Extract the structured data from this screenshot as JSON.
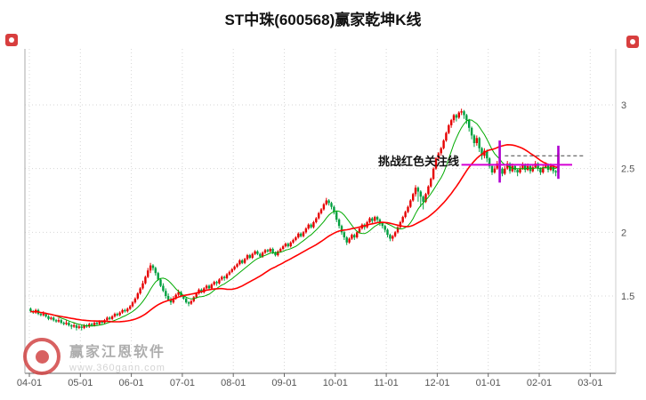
{
  "header": {
    "title": "ST中珠(600568)赢家乾坤K线"
  },
  "watermark": {
    "brand": "赢家江恩软件",
    "url": "www.360gann.com"
  },
  "chart_data": {
    "type": "candlestick",
    "title": "ST中珠(600568)赢家乾坤K线",
    "x_labels": [
      "04-01",
      "05-01",
      "06-01",
      "07-01",
      "08-01",
      "09-01",
      "10-01",
      "11-01",
      "12-01",
      "01-01",
      "02-01",
      "03-01"
    ],
    "y_ticks": [
      3,
      2.5,
      2,
      1.5
    ],
    "y_tick_labels": [
      "3",
      "2.5",
      "2",
      "1.5"
    ],
    "ylim": [
      0.9,
      3.45
    ],
    "grid": true,
    "candles_per_month": 20,
    "up_color": "#e60000",
    "down_color": "#00a040",
    "signal_color": "#b000d0",
    "moving_averages": [
      {
        "name": "MA10",
        "period": 10,
        "color": "#00aa00",
        "width": 1
      },
      {
        "name": "MA30",
        "period": 30,
        "color": "#ff0000",
        "width": 1.6
      }
    ],
    "alert_line": {
      "label": "挑战红色关注线",
      "value": 2.53,
      "color": "#d400d4",
      "start_index": 169,
      "end_x": 643
    },
    "dashed_line": {
      "value": 2.6,
      "start_index": 186,
      "end_x": 658
    },
    "signal_bars": [
      {
        "index": 184,
        "low": 2.39,
        "high": 2.72
      },
      {
        "index": 207,
        "low": 2.42,
        "high": 2.68
      }
    ],
    "candles": [
      [
        1.4,
        1.41,
        1.37,
        1.38
      ],
      [
        1.38,
        1.39,
        1.36,
        1.37
      ],
      [
        1.37,
        1.4,
        1.36,
        1.39
      ],
      [
        1.39,
        1.4,
        1.35,
        1.36
      ],
      [
        1.36,
        1.37,
        1.34,
        1.35
      ],
      [
        1.35,
        1.38,
        1.34,
        1.36
      ],
      [
        1.36,
        1.37,
        1.33,
        1.34
      ],
      [
        1.34,
        1.35,
        1.31,
        1.32
      ],
      [
        1.32,
        1.34,
        1.31,
        1.33
      ],
      [
        1.33,
        1.34,
        1.3,
        1.31
      ],
      [
        1.31,
        1.32,
        1.29,
        1.3
      ],
      [
        1.3,
        1.33,
        1.29,
        1.31
      ],
      [
        1.31,
        1.32,
        1.28,
        1.29
      ],
      [
        1.29,
        1.3,
        1.27,
        1.28
      ],
      [
        1.28,
        1.31,
        1.27,
        1.29
      ],
      [
        1.29,
        1.3,
        1.26,
        1.27
      ],
      [
        1.27,
        1.28,
        1.24,
        1.26
      ],
      [
        1.26,
        1.29,
        1.25,
        1.27
      ],
      [
        1.27,
        1.28,
        1.23,
        1.25
      ],
      [
        1.25,
        1.28,
        1.24,
        1.26
      ],
      [
        1.26,
        1.27,
        1.23,
        1.25
      ],
      [
        1.25,
        1.28,
        1.24,
        1.27
      ],
      [
        1.27,
        1.28,
        1.25,
        1.26
      ],
      [
        1.26,
        1.29,
        1.25,
        1.28
      ],
      [
        1.28,
        1.29,
        1.26,
        1.27
      ],
      [
        1.27,
        1.3,
        1.26,
        1.29
      ],
      [
        1.29,
        1.3,
        1.27,
        1.28
      ],
      [
        1.28,
        1.31,
        1.27,
        1.3
      ],
      [
        1.3,
        1.31,
        1.28,
        1.29
      ],
      [
        1.29,
        1.32,
        1.28,
        1.31
      ],
      [
        1.31,
        1.34,
        1.3,
        1.33
      ],
      [
        1.33,
        1.34,
        1.31,
        1.32
      ],
      [
        1.32,
        1.35,
        1.31,
        1.34
      ],
      [
        1.34,
        1.37,
        1.33,
        1.36
      ],
      [
        1.36,
        1.37,
        1.34,
        1.35
      ],
      [
        1.35,
        1.38,
        1.34,
        1.37
      ],
      [
        1.37,
        1.4,
        1.36,
        1.39
      ],
      [
        1.39,
        1.4,
        1.37,
        1.38
      ],
      [
        1.38,
        1.41,
        1.37,
        1.4
      ],
      [
        1.4,
        1.43,
        1.39,
        1.42
      ],
      [
        1.42,
        1.46,
        1.41,
        1.45
      ],
      [
        1.45,
        1.49,
        1.44,
        1.48
      ],
      [
        1.48,
        1.53,
        1.47,
        1.52
      ],
      [
        1.52,
        1.57,
        1.51,
        1.56
      ],
      [
        1.56,
        1.62,
        1.55,
        1.6
      ],
      [
        1.6,
        1.66,
        1.59,
        1.65
      ],
      [
        1.65,
        1.72,
        1.64,
        1.7
      ],
      [
        1.7,
        1.76,
        1.68,
        1.74
      ],
      [
        1.74,
        1.75,
        1.7,
        1.72
      ],
      [
        1.72,
        1.73,
        1.66,
        1.68
      ],
      [
        1.68,
        1.69,
        1.62,
        1.63
      ],
      [
        1.63,
        1.64,
        1.57,
        1.58
      ],
      [
        1.58,
        1.6,
        1.53,
        1.54
      ],
      [
        1.54,
        1.56,
        1.48,
        1.5
      ],
      [
        1.5,
        1.52,
        1.46,
        1.47
      ],
      [
        1.47,
        1.49,
        1.43,
        1.45
      ],
      [
        1.45,
        1.5,
        1.44,
        1.48
      ],
      [
        1.48,
        1.52,
        1.47,
        1.51
      ],
      [
        1.51,
        1.55,
        1.5,
        1.53
      ],
      [
        1.53,
        1.54,
        1.49,
        1.5
      ],
      [
        1.5,
        1.51,
        1.47,
        1.48
      ],
      [
        1.48,
        1.49,
        1.44,
        1.45
      ],
      [
        1.45,
        1.46,
        1.42,
        1.44
      ],
      [
        1.44,
        1.47,
        1.43,
        1.46
      ],
      [
        1.46,
        1.5,
        1.45,
        1.49
      ],
      [
        1.49,
        1.53,
        1.48,
        1.52
      ],
      [
        1.52,
        1.56,
        1.51,
        1.55
      ],
      [
        1.55,
        1.56,
        1.52,
        1.53
      ],
      [
        1.53,
        1.57,
        1.52,
        1.56
      ],
      [
        1.56,
        1.59,
        1.55,
        1.58
      ],
      [
        1.58,
        1.59,
        1.55,
        1.56
      ],
      [
        1.56,
        1.6,
        1.55,
        1.59
      ],
      [
        1.59,
        1.62,
        1.58,
        1.61
      ],
      [
        1.61,
        1.62,
        1.58,
        1.6
      ],
      [
        1.6,
        1.64,
        1.59,
        1.63
      ],
      [
        1.63,
        1.66,
        1.62,
        1.65
      ],
      [
        1.65,
        1.66,
        1.62,
        1.64
      ],
      [
        1.64,
        1.68,
        1.63,
        1.67
      ],
      [
        1.67,
        1.7,
        1.66,
        1.69
      ],
      [
        1.69,
        1.72,
        1.68,
        1.71
      ],
      [
        1.71,
        1.74,
        1.7,
        1.73
      ],
      [
        1.73,
        1.76,
        1.72,
        1.75
      ],
      [
        1.75,
        1.79,
        1.74,
        1.78
      ],
      [
        1.78,
        1.79,
        1.75,
        1.76
      ],
      [
        1.76,
        1.8,
        1.75,
        1.79
      ],
      [
        1.79,
        1.83,
        1.78,
        1.82
      ],
      [
        1.82,
        1.83,
        1.79,
        1.8
      ],
      [
        1.8,
        1.84,
        1.79,
        1.83
      ],
      [
        1.83,
        1.86,
        1.82,
        1.85
      ],
      [
        1.85,
        1.86,
        1.82,
        1.83
      ],
      [
        1.83,
        1.84,
        1.8,
        1.81
      ],
      [
        1.81,
        1.85,
        1.8,
        1.84
      ],
      [
        1.84,
        1.87,
        1.83,
        1.86
      ],
      [
        1.86,
        1.87,
        1.84,
        1.85
      ],
      [
        1.85,
        1.88,
        1.84,
        1.87
      ],
      [
        1.87,
        1.88,
        1.83,
        1.84
      ],
      [
        1.84,
        1.85,
        1.81,
        1.82
      ],
      [
        1.82,
        1.86,
        1.81,
        1.85
      ],
      [
        1.85,
        1.88,
        1.84,
        1.87
      ],
      [
        1.87,
        1.9,
        1.86,
        1.89
      ],
      [
        1.89,
        1.92,
        1.88,
        1.91
      ],
      [
        1.91,
        1.92,
        1.88,
        1.89
      ],
      [
        1.89,
        1.93,
        1.88,
        1.92
      ],
      [
        1.92,
        1.95,
        1.91,
        1.94
      ],
      [
        1.94,
        1.97,
        1.93,
        1.96
      ],
      [
        1.96,
        2.0,
        1.95,
        1.99
      ],
      [
        1.99,
        2.0,
        1.96,
        1.97
      ],
      [
        1.97,
        2.01,
        1.96,
        2.0
      ],
      [
        2.0,
        2.04,
        1.99,
        2.03
      ],
      [
        2.03,
        2.07,
        2.02,
        2.06
      ],
      [
        2.06,
        2.07,
        2.03,
        2.04
      ],
      [
        2.04,
        2.09,
        2.03,
        2.08
      ],
      [
        2.08,
        2.12,
        2.07,
        2.11
      ],
      [
        2.11,
        2.16,
        2.1,
        2.15
      ],
      [
        2.15,
        2.19,
        2.14,
        2.18
      ],
      [
        2.18,
        2.23,
        2.17,
        2.22
      ],
      [
        2.22,
        2.27,
        2.21,
        2.25
      ],
      [
        2.25,
        2.26,
        2.21,
        2.23
      ],
      [
        2.23,
        2.24,
        2.18,
        2.2
      ],
      [
        2.2,
        2.21,
        2.14,
        2.16
      ],
      [
        2.16,
        2.17,
        2.08,
        2.1
      ],
      [
        2.1,
        2.11,
        2.03,
        2.05
      ],
      [
        2.05,
        2.06,
        1.98,
        2.0
      ],
      [
        2.0,
        2.01,
        1.94,
        1.96
      ],
      [
        1.96,
        1.97,
        1.9,
        1.92
      ],
      [
        1.92,
        1.96,
        1.91,
        1.95
      ],
      [
        1.95,
        1.99,
        1.94,
        1.98
      ],
      [
        1.98,
        1.99,
        1.94,
        1.96
      ],
      [
        1.96,
        2.01,
        1.95,
        2.0
      ],
      [
        2.0,
        2.04,
        1.99,
        2.03
      ],
      [
        2.03,
        2.07,
        2.02,
        2.06
      ],
      [
        2.06,
        2.07,
        2.02,
        2.04
      ],
      [
        2.04,
        2.09,
        2.03,
        2.08
      ],
      [
        2.08,
        2.12,
        2.07,
        2.11
      ],
      [
        2.11,
        2.12,
        2.07,
        2.09
      ],
      [
        2.09,
        2.13,
        2.08,
        2.12
      ],
      [
        2.12,
        2.13,
        2.08,
        2.1
      ],
      [
        2.1,
        2.11,
        2.05,
        2.07
      ],
      [
        2.07,
        2.08,
        2.03,
        2.05
      ],
      [
        2.05,
        2.06,
        2.0,
        2.02
      ],
      [
        2.02,
        2.03,
        1.96,
        1.98
      ],
      [
        1.98,
        1.99,
        1.93,
        1.95
      ],
      [
        1.95,
        1.98,
        1.93,
        1.97
      ],
      [
        1.97,
        2.01,
        1.96,
        2.0
      ],
      [
        2.0,
        2.05,
        1.99,
        2.04
      ],
      [
        2.04,
        2.09,
        2.03,
        2.08
      ],
      [
        2.08,
        2.13,
        2.07,
        2.12
      ],
      [
        2.12,
        2.17,
        2.11,
        2.16
      ],
      [
        2.16,
        2.21,
        2.15,
        2.2
      ],
      [
        2.2,
        2.26,
        2.19,
        2.25
      ],
      [
        2.25,
        2.31,
        2.24,
        2.3
      ],
      [
        2.3,
        2.37,
        2.28,
        2.35
      ],
      [
        2.35,
        2.36,
        2.24,
        2.32
      ],
      [
        2.32,
        2.33,
        2.2,
        2.28
      ],
      [
        2.28,
        2.29,
        2.18,
        2.24
      ],
      [
        2.24,
        2.31,
        2.23,
        2.3
      ],
      [
        2.3,
        2.37,
        2.29,
        2.36
      ],
      [
        2.36,
        2.43,
        2.35,
        2.42
      ],
      [
        2.42,
        2.51,
        2.41,
        2.5
      ],
      [
        2.5,
        2.59,
        2.49,
        2.58
      ],
      [
        2.58,
        2.63,
        2.56,
        2.62
      ],
      [
        2.62,
        2.67,
        2.6,
        2.66
      ],
      [
        2.66,
        2.73,
        2.65,
        2.72
      ],
      [
        2.72,
        2.79,
        2.71,
        2.78
      ],
      [
        2.78,
        2.85,
        2.77,
        2.84
      ],
      [
        2.84,
        2.89,
        2.82,
        2.88
      ],
      [
        2.88,
        2.93,
        2.86,
        2.92
      ],
      [
        2.92,
        2.93,
        2.87,
        2.9
      ],
      [
        2.9,
        2.95,
        2.89,
        2.94
      ],
      [
        2.94,
        2.97,
        2.92,
        2.95
      ],
      [
        2.95,
        2.96,
        2.89,
        2.92
      ],
      [
        2.92,
        2.93,
        2.85,
        2.88
      ],
      [
        2.88,
        2.89,
        2.79,
        2.82
      ],
      [
        2.82,
        2.83,
        2.73,
        2.76
      ],
      [
        2.76,
        2.77,
        2.67,
        2.7
      ],
      [
        2.7,
        2.76,
        2.68,
        2.74
      ],
      [
        2.74,
        2.75,
        2.63,
        2.66
      ],
      [
        2.66,
        2.67,
        2.57,
        2.6
      ],
      [
        2.6,
        2.66,
        2.58,
        2.64
      ],
      [
        2.64,
        2.65,
        2.55,
        2.58
      ],
      [
        2.58,
        2.59,
        2.5,
        2.52
      ],
      [
        2.52,
        2.53,
        2.45,
        2.47
      ],
      [
        2.47,
        2.52,
        2.46,
        2.5
      ],
      [
        2.5,
        2.56,
        2.49,
        2.54
      ],
      [
        2.54,
        2.55,
        2.48,
        2.5
      ],
      [
        2.5,
        2.51,
        2.44,
        2.46
      ],
      [
        2.46,
        2.52,
        2.45,
        2.5
      ],
      [
        2.5,
        2.56,
        2.49,
        2.54
      ],
      [
        2.54,
        2.55,
        2.46,
        2.48
      ],
      [
        2.48,
        2.54,
        2.47,
        2.52
      ],
      [
        2.52,
        2.53,
        2.47,
        2.49
      ],
      [
        2.49,
        2.5,
        2.44,
        2.47
      ],
      [
        2.47,
        2.52,
        2.46,
        2.5
      ],
      [
        2.5,
        2.55,
        2.49,
        2.53
      ],
      [
        2.53,
        2.54,
        2.47,
        2.49
      ],
      [
        2.49,
        2.54,
        2.48,
        2.52
      ],
      [
        2.52,
        2.53,
        2.46,
        2.48
      ],
      [
        2.48,
        2.53,
        2.47,
        2.51
      ],
      [
        2.51,
        2.56,
        2.5,
        2.54
      ],
      [
        2.54,
        2.55,
        2.48,
        2.5
      ],
      [
        2.5,
        2.51,
        2.45,
        2.47
      ],
      [
        2.47,
        2.53,
        2.46,
        2.51
      ],
      [
        2.51,
        2.55,
        2.5,
        2.53
      ],
      [
        2.53,
        2.54,
        2.47,
        2.49
      ],
      [
        2.49,
        2.54,
        2.48,
        2.52
      ],
      [
        2.52,
        2.53,
        2.46,
        2.48
      ],
      [
        2.48,
        2.49,
        2.44,
        2.47
      ],
      [
        2.47,
        2.66,
        2.46,
        2.62
      ]
    ]
  }
}
